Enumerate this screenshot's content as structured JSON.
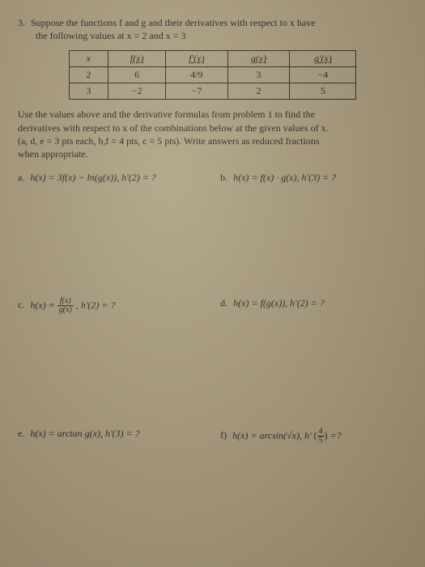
{
  "problem": {
    "number": "3.",
    "intro_line1": "Suppose the functions f and g and their derivatives with respect to x have",
    "intro_line2": "the following values at x = 2 and x = 3"
  },
  "table": {
    "headers": {
      "c0": "x",
      "c1": "f(x)",
      "c2": "f'(x)",
      "c3": "g(x)",
      "c4": "g'(x)"
    },
    "rows": [
      {
        "c0": "2",
        "c1": "6",
        "c2": "4/9",
        "c3": "3",
        "c4": "−4"
      },
      {
        "c0": "3",
        "c1": "−2",
        "c2": "−7",
        "c3": "2",
        "c4": "5"
      }
    ]
  },
  "instructions": {
    "line1": "Use the values above and the derivative formulas from problem 1 to find the",
    "line2": "derivatives with respect to x of the combinations below at the given values of x.",
    "line3": "(a, d, e = 3 pts each, b,f = 4 pts, c = 5 pts).  Write answers as reduced fractions",
    "line4": "when appropriate."
  },
  "parts": {
    "a": {
      "label": "a.",
      "expr": "h(x) = 3f(x) − ln(g(x)),   h'(2) = ?"
    },
    "b": {
      "label": "b.",
      "expr": "h(x) = f(x) · g(x),   h'(3) = ?"
    },
    "c": {
      "label": "c.",
      "expr_pre": "h(x) = ",
      "frac_n": "f(x)",
      "frac_d": "g(x)",
      "expr_post": ",   h'(2) = ?"
    },
    "d": {
      "label": "d.",
      "expr": "h(x) = f(g(x)),  h'(2) = ?"
    },
    "e": {
      "label": "e.",
      "expr": "h(x) = arctan g(x),  h'(3) = ?"
    },
    "f": {
      "label": "f)",
      "expr_pre": "h(x) = arcsin(√x),    h' ",
      "frac_n": "4",
      "frac_d": "5",
      "expr_post": " =?"
    }
  },
  "style": {
    "bg": "#a89a7d",
    "text": "#1a1a1a",
    "border": "#222"
  }
}
